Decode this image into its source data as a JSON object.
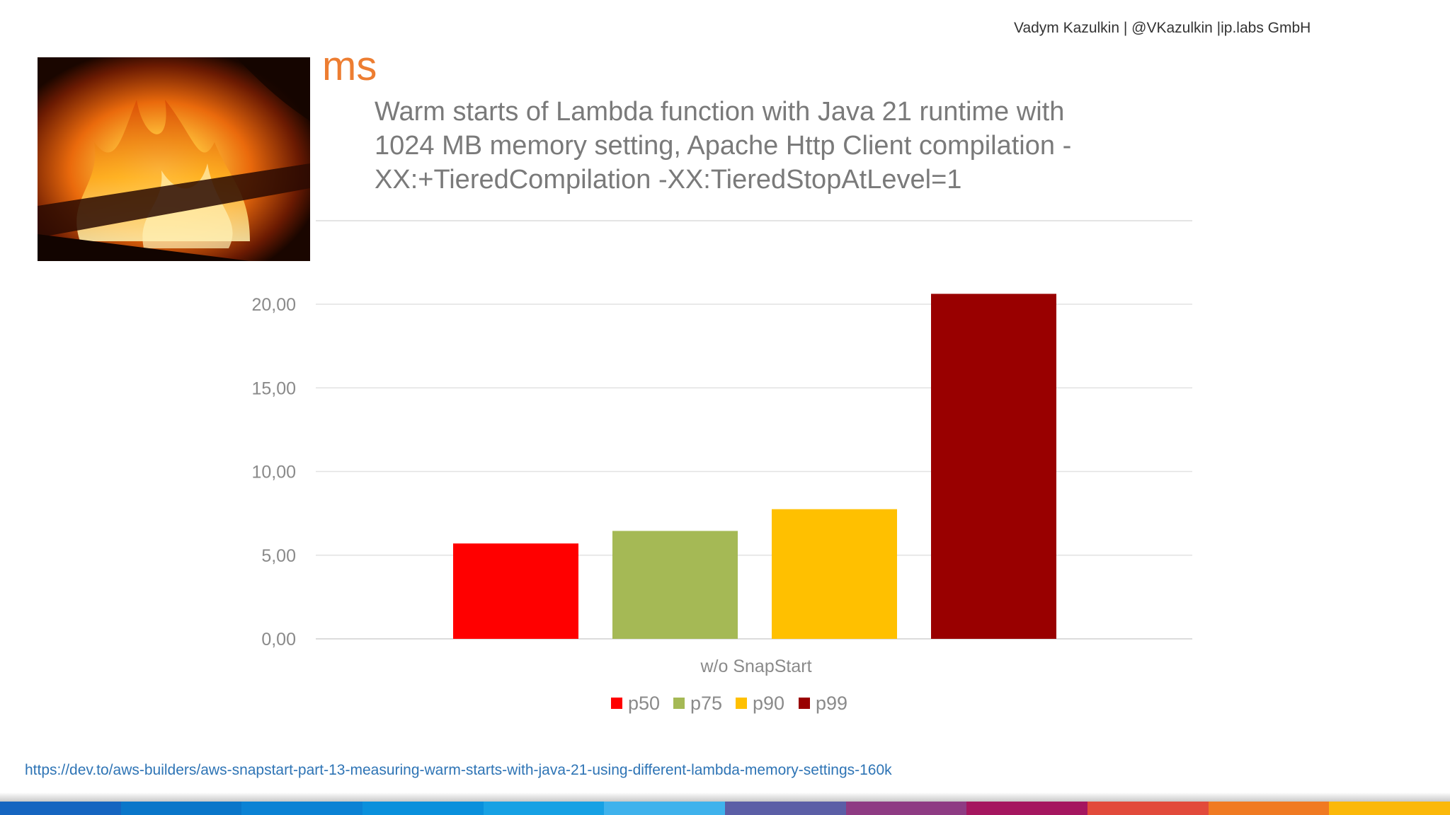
{
  "header": {
    "credit": "Vadym Kazulkin | @VKazulkin |ip.labs GmbH"
  },
  "fire_image": {
    "icon": "fire-photo"
  },
  "chart_data": {
    "type": "bar",
    "unit_label": "ms",
    "title": "Warm starts of Lambda function with Java 21 runtime with 1024 MB memory setting, Apache Http Client compilation -XX:+TieredCompilation -XX:TieredStopAtLevel=1",
    "categories": [
      "w/o SnapStart"
    ],
    "series": [
      {
        "name": "p50",
        "color": "#ff0000",
        "values": [
          5.7
        ]
      },
      {
        "name": "p75",
        "color": "#a5b955",
        "values": [
          6.45
        ]
      },
      {
        "name": "p90",
        "color": "#ffc000",
        "values": [
          7.75
        ]
      },
      {
        "name": "p99",
        "color": "#990000",
        "values": [
          20.62
        ]
      }
    ],
    "yticks": [
      "0,00",
      "5,00",
      "10,00",
      "15,00",
      "20,00"
    ],
    "ylim": [
      0,
      20
    ],
    "grid": true,
    "legend_position": "bottom"
  },
  "footer": {
    "link": "https://dev.to/aws-builders/aws-snapstart-part-13-measuring-warm-starts-with-java-21-using-different-lambda-memory-settings-160k",
    "strip_colors": [
      "#1565c0",
      "#0a76c9",
      "#0b82d4",
      "#0a90dc",
      "#17a1e4",
      "#3fb2ec",
      "#5b5ea6",
      "#8e3b83",
      "#a5165f",
      "#e24a3b",
      "#f07a22",
      "#fbb80a"
    ]
  }
}
